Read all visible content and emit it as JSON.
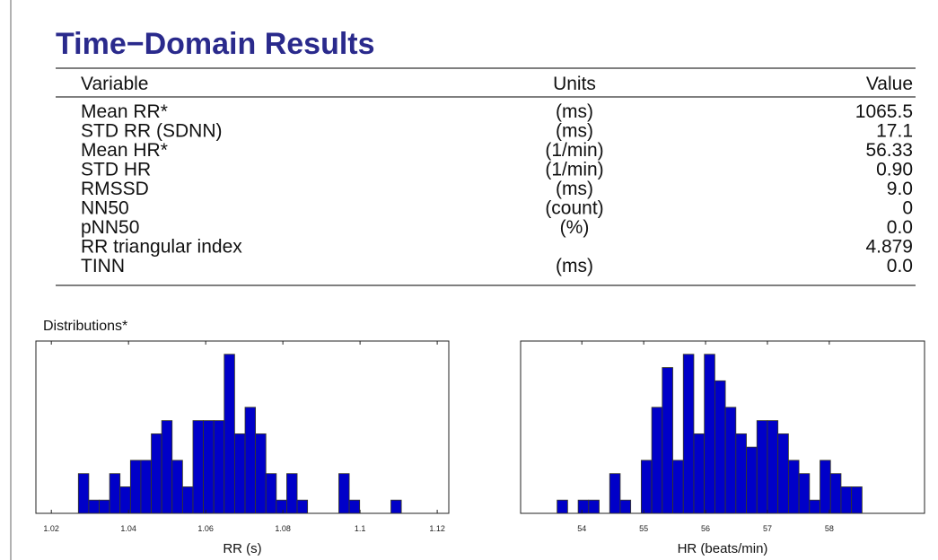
{
  "title": "Time−Domain Results",
  "table": {
    "columns": [
      "Variable",
      "Units",
      "Value"
    ],
    "rows": [
      [
        "Mean RR*",
        "(ms)",
        "1065.5"
      ],
      [
        "STD RR (SDNN)",
        "(ms)",
        "17.1"
      ],
      [
        "Mean HR*",
        "(1/min)",
        "56.33"
      ],
      [
        "STD HR",
        "(1/min)",
        "0.90"
      ],
      [
        "RMSSD",
        "(ms)",
        "9.0"
      ],
      [
        "NN50",
        "(count)",
        "0"
      ],
      [
        "pNN50",
        "(%)",
        "0.0"
      ],
      [
        "RR triangular index",
        null,
        "4.879"
      ],
      [
        "TINN",
        "(ms)",
        "0.0"
      ]
    ]
  },
  "distributions_label": "Distributions*",
  "chart_data": [
    {
      "type": "histogram",
      "xlabel": "RR (s)",
      "color": "#0000c8",
      "bins": [
        1.027,
        1.0297,
        1.0324,
        1.0351,
        1.0378,
        1.0405,
        1.0432,
        1.0459,
        1.0486,
        1.0513,
        1.054,
        1.0567,
        1.0594,
        1.0621,
        1.0648,
        1.0675,
        1.0702,
        1.0729,
        1.0756,
        1.0783,
        1.081,
        1.0837,
        1.0864,
        1.0891,
        1.0918,
        1.0945,
        1.0972,
        1.0999,
        1.1026,
        1.1053,
        1.108,
        1.1107,
        1.1134,
        1.1161
      ],
      "counts": [
        3,
        1,
        1,
        3,
        2,
        4,
        4,
        6,
        7,
        4,
        2,
        7,
        7,
        7,
        12,
        6,
        8,
        6,
        3,
        1,
        3,
        1,
        0,
        0,
        0,
        3,
        1,
        0,
        0,
        0,
        1,
        0,
        0
      ],
      "xlim": [
        1.016,
        1.123
      ],
      "ylim": [
        0,
        13
      ],
      "xticks": [
        1.02,
        1.04,
        1.06,
        1.08,
        1.1,
        1.12
      ]
    },
    {
      "type": "histogram",
      "xlabel": "HR (beats/min)",
      "color": "#0000c8",
      "bins": [
        53.6,
        53.77,
        53.94,
        54.11,
        54.28,
        54.45,
        54.62,
        54.79,
        54.96,
        55.13,
        55.3,
        55.47,
        55.64,
        55.81,
        55.98,
        56.15,
        56.32,
        56.49,
        56.66,
        56.83,
        57,
        57.17,
        57.34,
        57.51,
        57.68,
        57.85,
        58.02,
        58.19,
        58.36,
        58.53,
        58.7,
        58.87,
        59.04,
        59.21
      ],
      "counts": [
        1,
        0,
        1,
        1,
        0,
        3,
        1,
        0,
        4,
        8,
        11,
        4,
        12,
        6,
        12,
        10,
        8,
        6,
        5,
        7,
        7,
        6,
        4,
        3,
        1,
        4,
        3,
        2,
        2,
        0,
        0,
        0,
        0
      ],
      "xlim": [
        53.01,
        59.54
      ],
      "ylim": [
        0,
        13
      ],
      "xticks": [
        54,
        55,
        56,
        57,
        58
      ]
    }
  ]
}
